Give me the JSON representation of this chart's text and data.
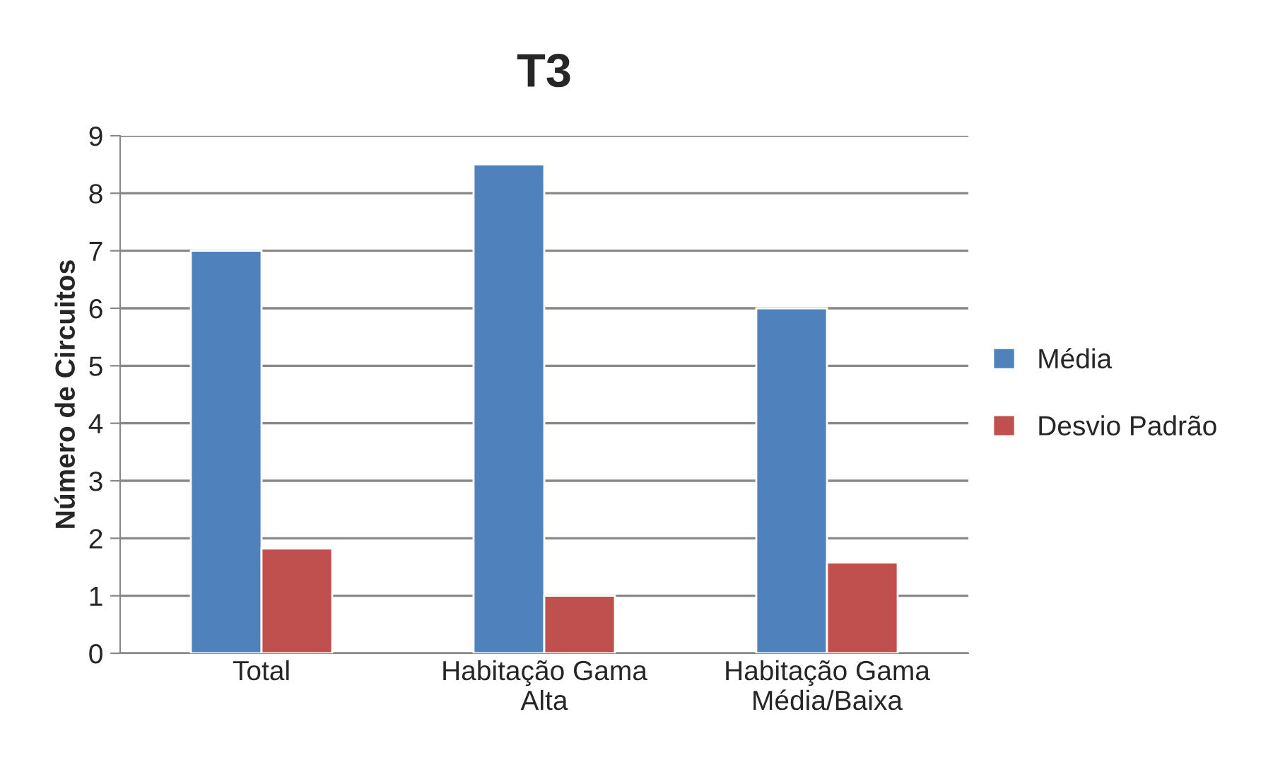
{
  "chart_data": {
    "type": "bar",
    "title": "T3",
    "ylabel": "Número de Circuitos",
    "categories": [
      "Total",
      "Habitação Gama\nAlta",
      "Habitação Gama\nMédia/Baixa"
    ],
    "series": [
      {
        "name": "Média",
        "color": "#4f81bd",
        "values": [
          7,
          8.5,
          6
        ]
      },
      {
        "name": "Desvio Padrão",
        "color": "#c0504d",
        "values": [
          1.82,
          1.0,
          1.58
        ]
      }
    ],
    "ylim": [
      0,
      9
    ],
    "yticks": [
      0,
      1,
      2,
      3,
      4,
      5,
      6,
      7,
      8,
      9
    ],
    "grid": "y",
    "legend": "right"
  }
}
